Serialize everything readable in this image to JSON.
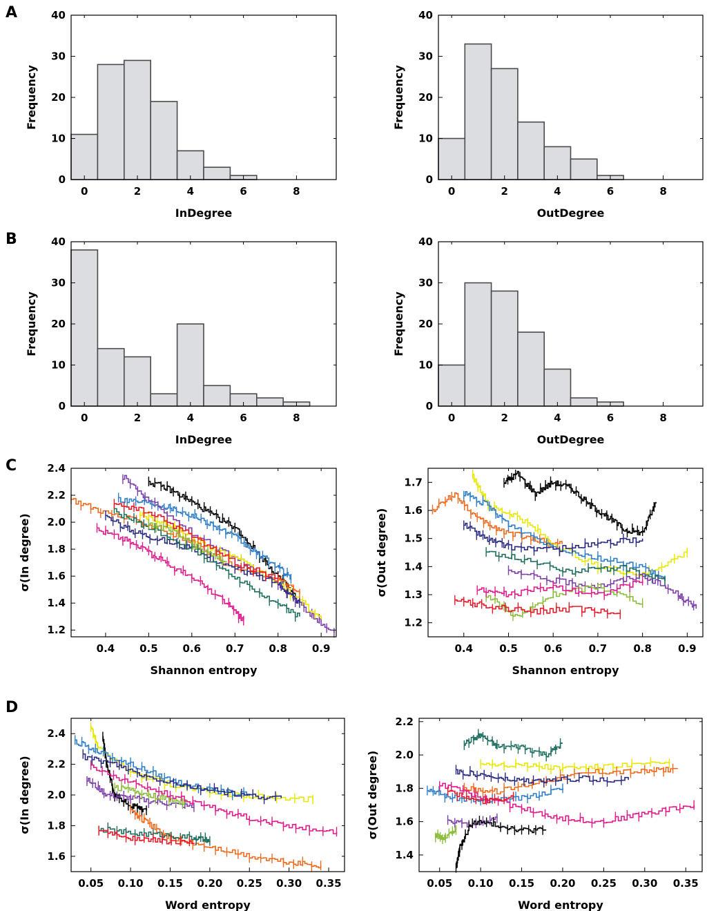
{
  "panel_labels": [
    "A",
    "B",
    "C",
    "D"
  ],
  "chart_data": [
    {
      "type": "bar",
      "panel": "A",
      "xlabel": "InDegree",
      "ylabel": "Frequency",
      "categories": [
        "0",
        "1",
        "2",
        "3",
        "4",
        "5",
        "6"
      ],
      "values": [
        11,
        28,
        29,
        19,
        7,
        3,
        1
      ],
      "ylim": [
        0,
        40
      ],
      "xlim": [
        -0.5,
        9.5
      ],
      "xticks": [
        "0",
        "2",
        "4",
        "6",
        "8"
      ],
      "yticks": [
        "0",
        "10",
        "20",
        "30",
        "40"
      ]
    },
    {
      "type": "bar",
      "panel": "A",
      "xlabel": "OutDegree",
      "ylabel": "Frequency",
      "categories": [
        "0",
        "1",
        "2",
        "3",
        "4",
        "5",
        "6"
      ],
      "values": [
        10,
        33,
        27,
        14,
        8,
        5,
        1
      ],
      "ylim": [
        0,
        40
      ],
      "xlim": [
        -0.5,
        9.5
      ],
      "xticks": [
        "0",
        "2",
        "4",
        "6",
        "8"
      ],
      "yticks": [
        "0",
        "10",
        "20",
        "30",
        "40"
      ]
    },
    {
      "type": "bar",
      "panel": "B",
      "xlabel": "InDegree",
      "ylabel": "Frequency",
      "categories": [
        "0",
        "1",
        "2",
        "3",
        "4",
        "5",
        "6",
        "7",
        "8"
      ],
      "values": [
        38,
        14,
        12,
        3,
        20,
        5,
        3,
        2,
        1
      ],
      "ylim": [
        0,
        40
      ],
      "xlim": [
        -0.5,
        9.5
      ],
      "xticks": [
        "0",
        "2",
        "4",
        "6",
        "8"
      ],
      "yticks": [
        "0",
        "10",
        "20",
        "30",
        "40"
      ]
    },
    {
      "type": "bar",
      "panel": "B",
      "xlabel": "OutDegree",
      "ylabel": "Frequency",
      "categories": [
        "0",
        "1",
        "2",
        "3",
        "4",
        "5",
        "6"
      ],
      "values": [
        10,
        30,
        28,
        18,
        9,
        2,
        1
      ],
      "ylim": [
        0,
        40
      ],
      "xlim": [
        -0.5,
        9.5
      ],
      "xticks": [
        "0",
        "2",
        "4",
        "6",
        "8"
      ],
      "yticks": [
        "0",
        "10",
        "20",
        "30",
        "40"
      ]
    },
    {
      "type": "line",
      "panel": "C",
      "xlabel": "Shannon entropy",
      "ylabel": "σ(In degree)",
      "xlim": [
        0.32,
        0.935
      ],
      "ylim": [
        1.15,
        2.4
      ],
      "xticks": [
        "0.4",
        "0.5",
        "0.6",
        "0.7",
        "0.8",
        "0.9"
      ],
      "yticks": [
        "1.2",
        "1.4",
        "1.6",
        "1.8",
        "2.0",
        "2.2",
        "2.4"
      ],
      "series": [
        {
          "name": "black",
          "color": "#000000",
          "x": [
            0.5,
            0.55,
            0.6,
            0.65,
            0.7,
            0.75,
            0.8,
            0.84
          ],
          "y": [
            2.3,
            2.24,
            2.15,
            2.05,
            1.96,
            1.78,
            1.6,
            1.45
          ]
        },
        {
          "name": "blue",
          "color": "#2f7fc8",
          "x": [
            0.43,
            0.5,
            0.55,
            0.6,
            0.65,
            0.7,
            0.75,
            0.8,
            0.83
          ],
          "y": [
            2.17,
            2.15,
            2.11,
            2.05,
            1.98,
            1.89,
            1.77,
            1.67,
            1.58
          ]
        },
        {
          "name": "purple",
          "color": "#7c3ea8",
          "x": [
            0.44,
            0.5,
            0.6,
            0.7,
            0.8,
            0.87,
            0.93
          ],
          "y": [
            2.34,
            2.16,
            1.92,
            1.73,
            1.55,
            1.33,
            1.18
          ]
        },
        {
          "name": "yellow",
          "color": "#e8e800",
          "x": [
            0.48,
            0.55,
            0.62,
            0.7,
            0.8,
            0.9
          ],
          "y": [
            2.06,
            1.98,
            1.85,
            1.73,
            1.55,
            1.28
          ]
        },
        {
          "name": "orange",
          "color": "#f06a1e",
          "x": [
            0.32,
            0.4,
            0.5,
            0.6,
            0.7,
            0.8,
            0.85
          ],
          "y": [
            2.17,
            2.07,
            1.98,
            1.85,
            1.66,
            1.58,
            1.47
          ]
        },
        {
          "name": "navy",
          "color": "#2b2a82",
          "x": [
            0.4,
            0.46,
            0.52,
            0.6,
            0.7,
            0.8,
            0.85
          ],
          "y": [
            2.04,
            1.94,
            1.88,
            1.8,
            1.65,
            1.55,
            1.4
          ]
        },
        {
          "name": "teal",
          "color": "#1e6e5e",
          "x": [
            0.42,
            0.5,
            0.6,
            0.7,
            0.78,
            0.85
          ],
          "y": [
            2.08,
            1.96,
            1.8,
            1.6,
            1.42,
            1.3
          ]
        },
        {
          "name": "green",
          "color": "#8cbd3a",
          "x": [
            0.5,
            0.56,
            0.62,
            0.68
          ],
          "y": [
            2.0,
            1.92,
            1.8,
            1.7
          ]
        },
        {
          "name": "red",
          "color": "#e8192a",
          "x": [
            0.42,
            0.5,
            0.6,
            0.7,
            0.8
          ],
          "y": [
            2.14,
            2.07,
            1.9,
            1.7,
            1.58
          ]
        },
        {
          "name": "pink",
          "color": "#e01b8c",
          "x": [
            0.38,
            0.45,
            0.5,
            0.55,
            0.62,
            0.68,
            0.72
          ],
          "y": [
            1.95,
            1.87,
            1.77,
            1.68,
            1.55,
            1.4,
            1.27
          ]
        }
      ]
    },
    {
      "type": "line",
      "panel": "C",
      "xlabel": "Shannon entropy",
      "ylabel": "σ(Out degree)",
      "xlim": [
        0.32,
        0.935
      ],
      "ylim": [
        1.15,
        1.75
      ],
      "xticks": [
        "0.4",
        "0.5",
        "0.6",
        "0.7",
        "0.8",
        "0.9"
      ],
      "yticks": [
        "1.2",
        "1.3",
        "1.4",
        "1.5",
        "1.6",
        "1.7"
      ],
      "series": [
        {
          "name": "black",
          "color": "#000000",
          "x": [
            0.49,
            0.52,
            0.56,
            0.6,
            0.64,
            0.68,
            0.72,
            0.76,
            0.8,
            0.83
          ],
          "y": [
            1.7,
            1.73,
            1.66,
            1.7,
            1.68,
            1.62,
            1.58,
            1.53,
            1.52,
            1.63
          ]
        },
        {
          "name": "orange",
          "color": "#f06a1e",
          "x": [
            0.33,
            0.38,
            0.43,
            0.48,
            0.55,
            0.62
          ],
          "y": [
            1.6,
            1.66,
            1.57,
            1.53,
            1.5,
            1.48
          ]
        },
        {
          "name": "yellow",
          "color": "#e8e800",
          "x": [
            0.42,
            0.46,
            0.52,
            0.6,
            0.7,
            0.8,
            0.9
          ],
          "y": [
            1.72,
            1.61,
            1.58,
            1.48,
            1.4,
            1.37,
            1.45
          ]
        },
        {
          "name": "blue",
          "color": "#2f7fc8",
          "x": [
            0.4,
            0.45,
            0.5,
            0.6,
            0.7,
            0.8,
            0.85
          ],
          "y": [
            1.66,
            1.62,
            1.55,
            1.47,
            1.43,
            1.4,
            1.35
          ]
        },
        {
          "name": "navy",
          "color": "#2b2a82",
          "x": [
            0.4,
            0.45,
            0.5,
            0.6,
            0.7,
            0.8
          ],
          "y": [
            1.55,
            1.5,
            1.47,
            1.46,
            1.48,
            1.5
          ]
        },
        {
          "name": "teal",
          "color": "#1e6e5e",
          "x": [
            0.45,
            0.55,
            0.65,
            0.75,
            0.85
          ],
          "y": [
            1.45,
            1.42,
            1.38,
            1.4,
            1.35
          ]
        },
        {
          "name": "purple",
          "color": "#7c3ea8",
          "x": [
            0.5,
            0.6,
            0.7,
            0.8,
            0.88,
            0.92
          ],
          "y": [
            1.38,
            1.35,
            1.33,
            1.37,
            1.3,
            1.25
          ]
        },
        {
          "name": "green",
          "color": "#8cbd3a",
          "x": [
            0.45,
            0.52,
            0.6,
            0.7,
            0.8
          ],
          "y": [
            1.3,
            1.22,
            1.3,
            1.33,
            1.27
          ]
        },
        {
          "name": "pink",
          "color": "#e01b8c",
          "x": [
            0.43,
            0.5,
            0.6,
            0.7,
            0.8
          ],
          "y": [
            1.32,
            1.3,
            1.33,
            1.3,
            1.35
          ]
        },
        {
          "name": "red",
          "color": "#e8192a",
          "x": [
            0.38,
            0.45,
            0.55,
            0.65,
            0.75
          ],
          "y": [
            1.28,
            1.26,
            1.24,
            1.25,
            1.23
          ]
        }
      ]
    },
    {
      "type": "line",
      "panel": "D",
      "xlabel": "Word entropy",
      "ylabel": "σ(In degree)",
      "xlim": [
        0.025,
        0.37
      ],
      "ylim": [
        1.5,
        2.5
      ],
      "xticks": [
        "0.05",
        "0.10",
        "0.15",
        "0.20",
        "0.25",
        "0.30",
        "0.35"
      ],
      "yticks": [
        "1.6",
        "1.8",
        "2.0",
        "2.2",
        "2.4"
      ],
      "series": [
        {
          "name": "yellow",
          "color": "#e8e800",
          "x": [
            0.05,
            0.06,
            0.1,
            0.15,
            0.2,
            0.25,
            0.33
          ],
          "y": [
            2.45,
            2.3,
            2.15,
            2.07,
            2.02,
            1.99,
            1.97
          ]
        },
        {
          "name": "black",
          "color": "#000000",
          "x": [
            0.065,
            0.07,
            0.08,
            0.1,
            0.12
          ],
          "y": [
            2.38,
            2.2,
            2.0,
            1.93,
            1.9
          ]
        },
        {
          "name": "blue",
          "color": "#2f7fc8",
          "x": [
            0.03,
            0.06,
            0.1,
            0.15,
            0.2,
            0.25
          ],
          "y": [
            2.35,
            2.28,
            2.2,
            2.1,
            2.03,
            2.0
          ]
        },
        {
          "name": "navy",
          "color": "#2b2a82",
          "x": [
            0.04,
            0.08,
            0.12,
            0.18,
            0.24,
            0.29
          ],
          "y": [
            2.25,
            2.2,
            2.12,
            2.05,
            2.0,
            1.98
          ]
        },
        {
          "name": "purple",
          "color": "#7c3ea8",
          "x": [
            0.045,
            0.07,
            0.1,
            0.14,
            0.18
          ],
          "y": [
            2.1,
            2.0,
            1.98,
            1.95,
            1.92
          ]
        },
        {
          "name": "green",
          "color": "#8cbd3a",
          "x": [
            0.08,
            0.11,
            0.14,
            0.17
          ],
          "y": [
            2.05,
            2.02,
            1.98,
            1.95
          ]
        },
        {
          "name": "orange",
          "color": "#f06a1e",
          "x": [
            0.1,
            0.12,
            0.15,
            0.2,
            0.25,
            0.3,
            0.34
          ],
          "y": [
            1.9,
            1.82,
            1.72,
            1.66,
            1.6,
            1.56,
            1.54
          ]
        },
        {
          "name": "pink",
          "color": "#e01b8c",
          "x": [
            0.05,
            0.1,
            0.15,
            0.2,
            0.25,
            0.3,
            0.36
          ],
          "y": [
            2.18,
            2.08,
            2.0,
            1.92,
            1.85,
            1.8,
            1.76
          ]
        },
        {
          "name": "teal",
          "color": "#1e6e5e",
          "x": [
            0.06,
            0.1,
            0.14,
            0.18,
            0.2
          ],
          "y": [
            1.78,
            1.75,
            1.74,
            1.72,
            1.7
          ]
        },
        {
          "name": "red",
          "color": "#e8192a",
          "x": [
            0.06,
            0.1,
            0.14,
            0.18
          ],
          "y": [
            1.77,
            1.72,
            1.7,
            1.68
          ]
        }
      ]
    },
    {
      "type": "line",
      "panel": "D",
      "xlabel": "Word entropy",
      "ylabel": "σ(Out degree)",
      "xlim": [
        0.025,
        0.37
      ],
      "ylim": [
        1.3,
        2.22
      ],
      "xticks": [
        "0.05",
        "0.10",
        "0.15",
        "0.20",
        "0.25",
        "0.30",
        "0.35"
      ],
      "yticks": [
        "1.4",
        "1.6",
        "1.8",
        "2.0",
        "2.2"
      ],
      "series": [
        {
          "name": "teal",
          "color": "#1e6e5e",
          "x": [
            0.08,
            0.1,
            0.12,
            0.15,
            0.18,
            0.2
          ],
          "y": [
            2.07,
            2.12,
            2.05,
            2.05,
            2.0,
            2.07
          ]
        },
        {
          "name": "yellow",
          "color": "#e8e800",
          "x": [
            0.1,
            0.15,
            0.2,
            0.25,
            0.33
          ],
          "y": [
            1.95,
            1.94,
            1.92,
            1.93,
            1.95
          ]
        },
        {
          "name": "orange",
          "color": "#f06a1e",
          "x": [
            0.08,
            0.12,
            0.18,
            0.24,
            0.3,
            0.34
          ],
          "y": [
            1.8,
            1.78,
            1.85,
            1.9,
            1.9,
            1.92
          ]
        },
        {
          "name": "navy",
          "color": "#2b2a82",
          "x": [
            0.07,
            0.1,
            0.13,
            0.17,
            0.22,
            0.28
          ],
          "y": [
            1.9,
            1.88,
            1.85,
            1.84,
            1.86,
            1.85
          ]
        },
        {
          "name": "blue",
          "color": "#2f7fc8",
          "x": [
            0.035,
            0.06,
            0.1,
            0.15,
            0.2
          ],
          "y": [
            1.8,
            1.75,
            1.72,
            1.74,
            1.8
          ]
        },
        {
          "name": "pink",
          "color": "#e01b8c",
          "x": [
            0.05,
            0.1,
            0.15,
            0.2,
            0.25,
            0.3,
            0.36
          ],
          "y": [
            1.82,
            1.75,
            1.68,
            1.62,
            1.6,
            1.65,
            1.7
          ]
        },
        {
          "name": "red",
          "color": "#e8192a",
          "x": [
            0.06,
            0.1,
            0.14
          ],
          "y": [
            1.78,
            1.72,
            1.75
          ]
        },
        {
          "name": "purple",
          "color": "#7c3ea8",
          "x": [
            0.06,
            0.09,
            0.12
          ],
          "y": [
            1.6,
            1.58,
            1.62
          ]
        },
        {
          "name": "green",
          "color": "#8cbd3a",
          "x": [
            0.045,
            0.055,
            0.07
          ],
          "y": [
            1.52,
            1.5,
            1.55
          ]
        },
        {
          "name": "black",
          "color": "#000000",
          "x": [
            0.07,
            0.075,
            0.09,
            0.12,
            0.15,
            0.18
          ],
          "y": [
            1.33,
            1.45,
            1.6,
            1.58,
            1.55,
            1.55
          ]
        }
      ]
    }
  ]
}
